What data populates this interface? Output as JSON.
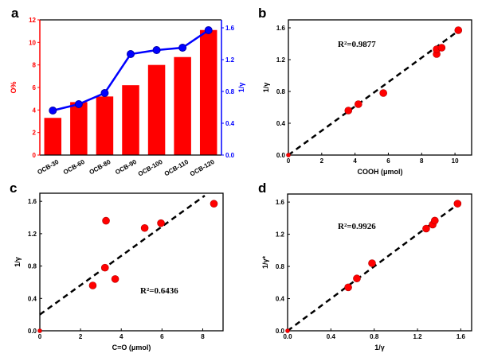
{
  "chart_data": [
    {
      "panel": "a",
      "type": "bar+line",
      "categories": [
        "OCB-30",
        "OCB-60",
        "OCB-80",
        "OCB-90",
        "OCB-100",
        "OCB-110",
        "OCB-120"
      ],
      "series": [
        {
          "type": "bar",
          "axis": "left",
          "color": "#ff0000",
          "values": [
            3.3,
            4.7,
            5.2,
            6.2,
            8.0,
            8.7,
            11.1
          ]
        },
        {
          "type": "line",
          "axis": "right",
          "color": "#0000ff",
          "values": [
            0.56,
            0.64,
            0.78,
            1.27,
            1.32,
            1.35,
            1.57
          ]
        }
      ],
      "ylabel": "O%",
      "ylim": [
        0,
        12
      ],
      "yticks": [
        0,
        2,
        4,
        6,
        8,
        10,
        12
      ],
      "y2label": "1/γ",
      "y2lim": [
        0,
        1.7
      ],
      "y2ticks": [
        "0.0",
        "0.4",
        "0.8",
        "1.2",
        "1.6"
      ]
    },
    {
      "panel": "b",
      "type": "scatter",
      "xlabel": "COOH (μmol)",
      "ylabel": "1/γ",
      "xlim": [
        0,
        11
      ],
      "ylim": [
        0,
        1.7
      ],
      "xticks": [
        "0",
        "2",
        "4",
        "6",
        "8",
        "10"
      ],
      "yticks": [
        "0.0",
        "0.4",
        "0.8",
        "1.2",
        "1.6"
      ],
      "points": [
        [
          0,
          0
        ],
        [
          3.6,
          0.56
        ],
        [
          4.2,
          0.64
        ],
        [
          5.7,
          0.78
        ],
        [
          8.9,
          1.27
        ],
        [
          8.9,
          1.33
        ],
        [
          9.2,
          1.35
        ],
        [
          10.2,
          1.57
        ]
      ],
      "fit_line": [
        [
          0,
          0
        ],
        [
          10,
          1.53
        ]
      ],
      "annotation": "R²=0.9877"
    },
    {
      "panel": "c",
      "type": "scatter",
      "xlabel": "C=O (μmol)",
      "ylabel": "1/γ",
      "xlim": [
        0,
        9
      ],
      "ylim": [
        0,
        1.7
      ],
      "xticks": [
        "0",
        "2",
        "4",
        "6",
        "8"
      ],
      "yticks": [
        "0.0",
        "0.4",
        "0.8",
        "1.2",
        "1.6"
      ],
      "points": [
        [
          0,
          0
        ],
        [
          2.6,
          0.56
        ],
        [
          3.2,
          0.78
        ],
        [
          3.25,
          1.36
        ],
        [
          3.7,
          0.64
        ],
        [
          5.15,
          1.27
        ],
        [
          5.95,
          1.33
        ],
        [
          8.55,
          1.57
        ]
      ],
      "fit_line": [
        [
          0,
          0.2
        ],
        [
          8.1,
          1.67
        ]
      ],
      "annotation": "R²=0.6436"
    },
    {
      "panel": "d",
      "type": "scatter",
      "xlabel": "1/γ",
      "ylabel": "1/γ*",
      "xlim": [
        0,
        1.7
      ],
      "ylim": [
        0,
        1.7
      ],
      "xticks": [
        "0.0",
        "0.4",
        "0.8",
        "1.2",
        "1.6"
      ],
      "yticks": [
        "0.0",
        "0.4",
        "0.8",
        "1.2",
        "1.6"
      ],
      "points": [
        [
          0,
          0
        ],
        [
          0.56,
          0.54
        ],
        [
          0.64,
          0.65
        ],
        [
          0.78,
          0.84
        ],
        [
          1.28,
          1.27
        ],
        [
          1.34,
          1.32
        ],
        [
          1.36,
          1.37
        ],
        [
          1.57,
          1.58
        ]
      ],
      "fit_line": [
        [
          0,
          0
        ],
        [
          1.6,
          1.6
        ]
      ],
      "annotation": "R²=0.9926"
    }
  ],
  "colors": {
    "bar": "#ff0000",
    "line": "#0000ff",
    "point": "#ff0000",
    "fit": "#000000"
  }
}
